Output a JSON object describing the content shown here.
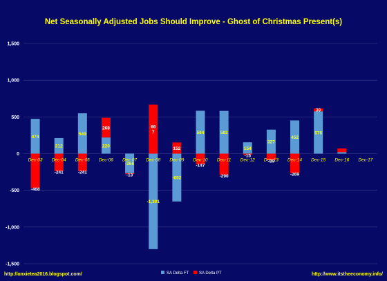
{
  "chart_data": {
    "type": "bar",
    "title": "Net Seasonally Adjusted Jobs Should Improve - Ghost of Christmas Present(s)",
    "categories": [
      "Dec-03",
      "Dec-04",
      "Dec-05",
      "Dec-06",
      "Dec-07",
      "Dec-08",
      "Dec-09",
      "Dec-10",
      "Dec-11",
      "Dec-12",
      "Dec-13",
      "Dec-14",
      "Dec-15",
      "Dec-16",
      "Dec-17"
    ],
    "series": [
      {
        "name": "SA Delta FT",
        "color": "#5b9bd5",
        "values": [
          474,
          212,
          549,
          220,
          -266,
          -1301,
          -652,
          584,
          582,
          154,
          327,
          452,
          576,
          20,
          0
        ],
        "labels": [
          "474",
          "212",
          "549",
          "220",
          "-266",
          "-1,301",
          "-652",
          "584",
          "582",
          "154",
          "327",
          "452",
          "576",
          "",
          ""
        ]
      },
      {
        "name": "SA Delta PT",
        "color": "#ff0000",
        "values": [
          -468,
          -241,
          -241,
          268,
          -13,
          667,
          152,
          -147,
          -290,
          -15,
          -89,
          -269,
          39,
          50,
          0
        ],
        "labels": [
          "-468",
          "-241",
          "-241",
          "268",
          "-13",
          "66\n7",
          "152",
          "-147",
          "-290",
          "-15",
          "-89",
          "-269",
          "39",
          "",
          ""
        ]
      }
    ],
    "ylim": [
      -1500,
      1500
    ],
    "yticks": [
      "-1,500",
      "-1,000",
      "-500",
      "0",
      "500",
      "1,000",
      "1,500"
    ],
    "stacked": true,
    "grid": true,
    "legend": "bottom-center",
    "colors": {
      "background": "#060a66",
      "title": "#ffff00",
      "axis_text": "#ffffff",
      "category_text": "#ffff00",
      "grid": "#3a3f8c"
    }
  },
  "footer": {
    "left": "http://anxietea2016.blogspot.com/",
    "right": "http://www.itstheeconomy.info/"
  }
}
